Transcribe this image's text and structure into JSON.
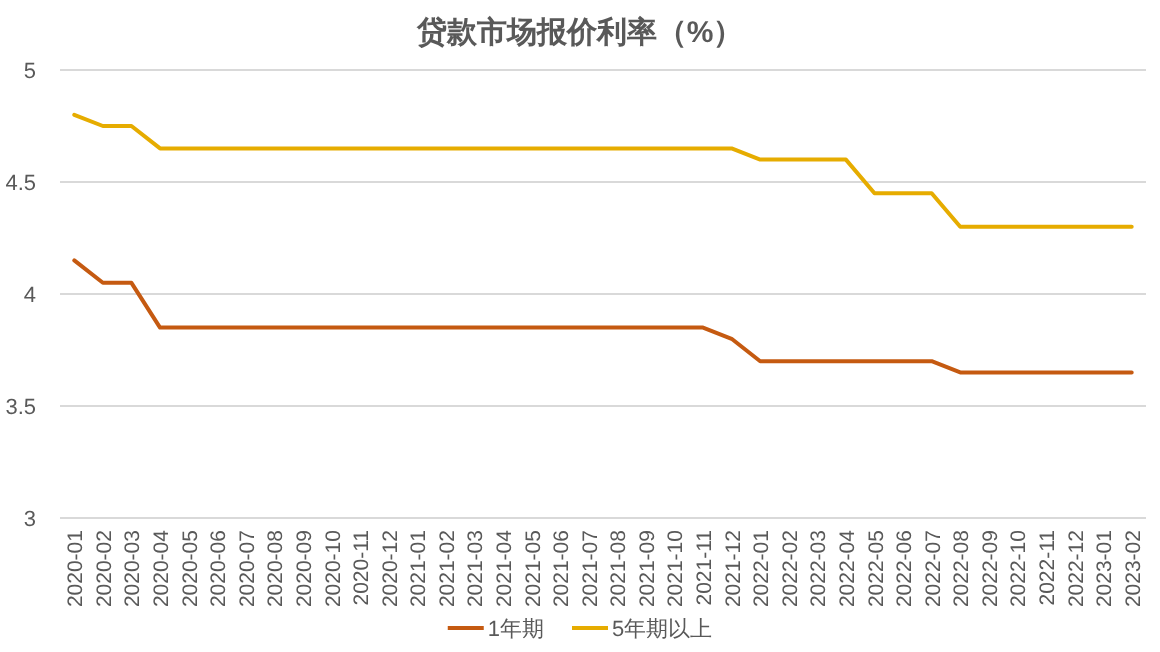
{
  "chart_data": {
    "type": "line",
    "title": "贷款市场报价利率（%）",
    "categories": [
      "2020-01",
      "2020-02",
      "2020-03",
      "2020-04",
      "2020-05",
      "2020-06",
      "2020-07",
      "2020-08",
      "2020-09",
      "2020-10",
      "2020-11",
      "2020-12",
      "2021-01",
      "2021-02",
      "2021-03",
      "2021-04",
      "2021-05",
      "2021-06",
      "2021-07",
      "2021-08",
      "2021-09",
      "2021-10",
      "2021-11",
      "2021-12",
      "2022-01",
      "2022-02",
      "2022-03",
      "2022-04",
      "2022-05",
      "2022-06",
      "2022-07",
      "2022-08",
      "2022-09",
      "2022-10",
      "2022-11",
      "2022-12",
      "2023-01",
      "2023-02"
    ],
    "series": [
      {
        "name": "1年期",
        "color": "#c55a11",
        "values": [
          4.15,
          4.05,
          4.05,
          3.85,
          3.85,
          3.85,
          3.85,
          3.85,
          3.85,
          3.85,
          3.85,
          3.85,
          3.85,
          3.85,
          3.85,
          3.85,
          3.85,
          3.85,
          3.85,
          3.85,
          3.85,
          3.85,
          3.85,
          3.8,
          3.7,
          3.7,
          3.7,
          3.7,
          3.7,
          3.7,
          3.7,
          3.65,
          3.65,
          3.65,
          3.65,
          3.65,
          3.65,
          3.65
        ]
      },
      {
        "name": "5年期以上",
        "color": "#e6ac00",
        "values": [
          4.8,
          4.75,
          4.75,
          4.65,
          4.65,
          4.65,
          4.65,
          4.65,
          4.65,
          4.65,
          4.65,
          4.65,
          4.65,
          4.65,
          4.65,
          4.65,
          4.65,
          4.65,
          4.65,
          4.65,
          4.65,
          4.65,
          4.65,
          4.65,
          4.6,
          4.6,
          4.6,
          4.6,
          4.45,
          4.45,
          4.45,
          4.3,
          4.3,
          4.3,
          4.3,
          4.3,
          4.3,
          4.3
        ]
      }
    ],
    "ylim": [
      3,
      5
    ],
    "yticks": [
      3,
      3.5,
      4,
      4.5,
      5
    ],
    "grid": "y",
    "legend": "bottom",
    "marker": "none",
    "line_style": "solid"
  }
}
